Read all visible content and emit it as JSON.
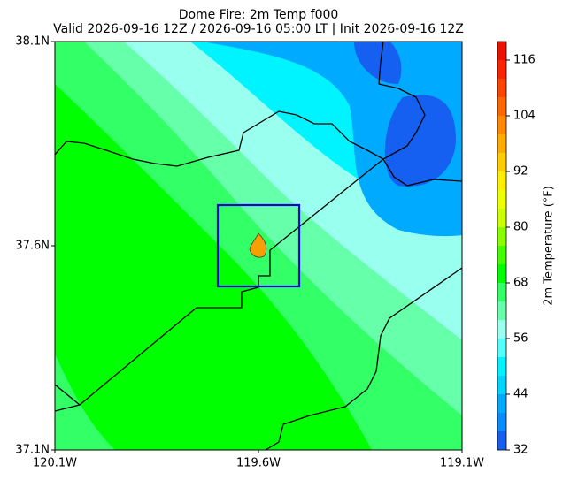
{
  "map": {
    "title": "Dome Fire: 2m Temp f000",
    "subtitle": "Valid 2026-09-16 12Z / 2026-09-16 05:00 LT | Init 2026-09-16 12Z",
    "lat_lim": [
      37.1,
      38.1
    ],
    "lon_lim": [
      -120.1,
      -119.1
    ],
    "lat_ticks": [
      {
        "value": 38.1,
        "label": "38.1N"
      },
      {
        "value": 37.6,
        "label": "37.6N"
      },
      {
        "value": 37.1,
        "label": "37.1N"
      }
    ],
    "lon_ticks": [
      {
        "value": -120.1,
        "label": "120.1W"
      },
      {
        "value": -119.6,
        "label": "119.6W"
      },
      {
        "value": -119.1,
        "label": "119.1W"
      }
    ]
  },
  "colorbar": {
    "label": "2m Temperature (°F)",
    "levels": [
      32,
      36,
      40,
      44,
      48,
      52,
      56,
      60,
      64,
      68,
      72,
      76,
      80,
      84,
      88,
      92,
      96,
      100,
      104,
      108,
      112,
      116,
      120
    ],
    "colors": [
      "#1560f0",
      "#0a8cff",
      "#00aaff",
      "#00d4ff",
      "#00f4ff",
      "#55ffff",
      "#99ffee",
      "#66ffaa",
      "#33ff66",
      "#00ff00",
      "#44ff00",
      "#88ff00",
      "#ccff00",
      "#eeff00",
      "#ffee00",
      "#ffcc00",
      "#ffaa00",
      "#ff8800",
      "#ff6600",
      "#ff4400",
      "#ff2200",
      "#ee1100"
    ],
    "ticks": [
      32,
      44,
      56,
      68,
      80,
      92,
      104,
      116
    ]
  }
}
